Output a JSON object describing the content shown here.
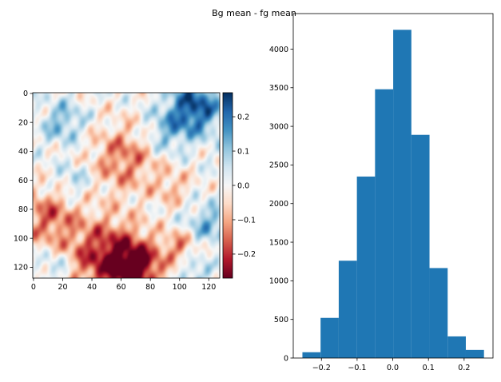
{
  "figure": {
    "suptitle": "Bg mean - fg mean"
  },
  "chart_data": [
    {
      "type": "heatmap",
      "title": "",
      "colormap": "RdBu",
      "grid_shape": [
        128,
        128
      ],
      "xlim": [
        0,
        127
      ],
      "ylim": [
        127,
        0
      ],
      "x_ticks": [
        0,
        20,
        40,
        60,
        80,
        100,
        120
      ],
      "y_ticks": [
        0,
        20,
        40,
        60,
        80,
        100,
        120
      ],
      "colorbar": {
        "vmin": -0.27,
        "vmax": 0.27,
        "ticks": [
          0.2,
          0.1,
          0.0,
          -0.1,
          -0.2
        ],
        "tick_labels": [
          "0.2",
          "0.1",
          "0.0",
          "−0.1",
          "−0.2"
        ]
      },
      "notes_visible_pattern": [
        {
          "cx": 62,
          "cy": 45,
          "r": 22,
          "value": -0.14
        },
        {
          "cx": 48,
          "cy": 112,
          "r": 25,
          "value": -0.2
        },
        {
          "cx": 70,
          "cy": 120,
          "r": 18,
          "value": -0.24
        },
        {
          "cx": 10,
          "cy": 85,
          "r": 18,
          "value": -0.15
        },
        {
          "cx": 95,
          "cy": 65,
          "r": 12,
          "value": -0.08
        },
        {
          "cx": 100,
          "cy": 105,
          "r": 10,
          "value": -0.12
        },
        {
          "cx": 110,
          "cy": 10,
          "r": 18,
          "value": 0.24
        },
        {
          "cx": 20,
          "cy": 20,
          "r": 14,
          "value": 0.12
        },
        {
          "cx": 90,
          "cy": 28,
          "r": 14,
          "value": 0.1
        },
        {
          "cx": 120,
          "cy": 90,
          "r": 14,
          "value": 0.12
        },
        {
          "cx": 28,
          "cy": 60,
          "r": 12,
          "value": 0.08
        },
        {
          "cx": 15,
          "cy": 120,
          "r": 10,
          "value": 0.1
        },
        {
          "cx": 110,
          "cy": 125,
          "r": 10,
          "value": 0.1
        }
      ]
    },
    {
      "type": "bar",
      "title": "",
      "bar_color": "#1f77b4",
      "bin_edges": [
        -0.2533,
        -0.2024,
        -0.1515,
        -0.1006,
        -0.0497,
        0.0012,
        0.0521,
        0.103,
        0.1539,
        0.2048,
        0.2557
      ],
      "values": [
        75,
        520,
        1260,
        2350,
        3480,
        4250,
        2890,
        1165,
        280,
        105
      ],
      "xlim": [
        -0.279,
        0.281
      ],
      "ylim": [
        0,
        4460
      ],
      "x_ticks": [
        -0.2,
        -0.1,
        0.0,
        0.1,
        0.2
      ],
      "x_tick_labels": [
        "−0.2",
        "−0.1",
        "0.0",
        "0.1",
        "0.2"
      ],
      "y_ticks": [
        0,
        500,
        1000,
        1500,
        2000,
        2500,
        3000,
        3500,
        4000
      ],
      "y_tick_labels": [
        "0",
        "500",
        "1000",
        "1500",
        "2000",
        "2500",
        "3000",
        "3500",
        "4000"
      ]
    }
  ]
}
